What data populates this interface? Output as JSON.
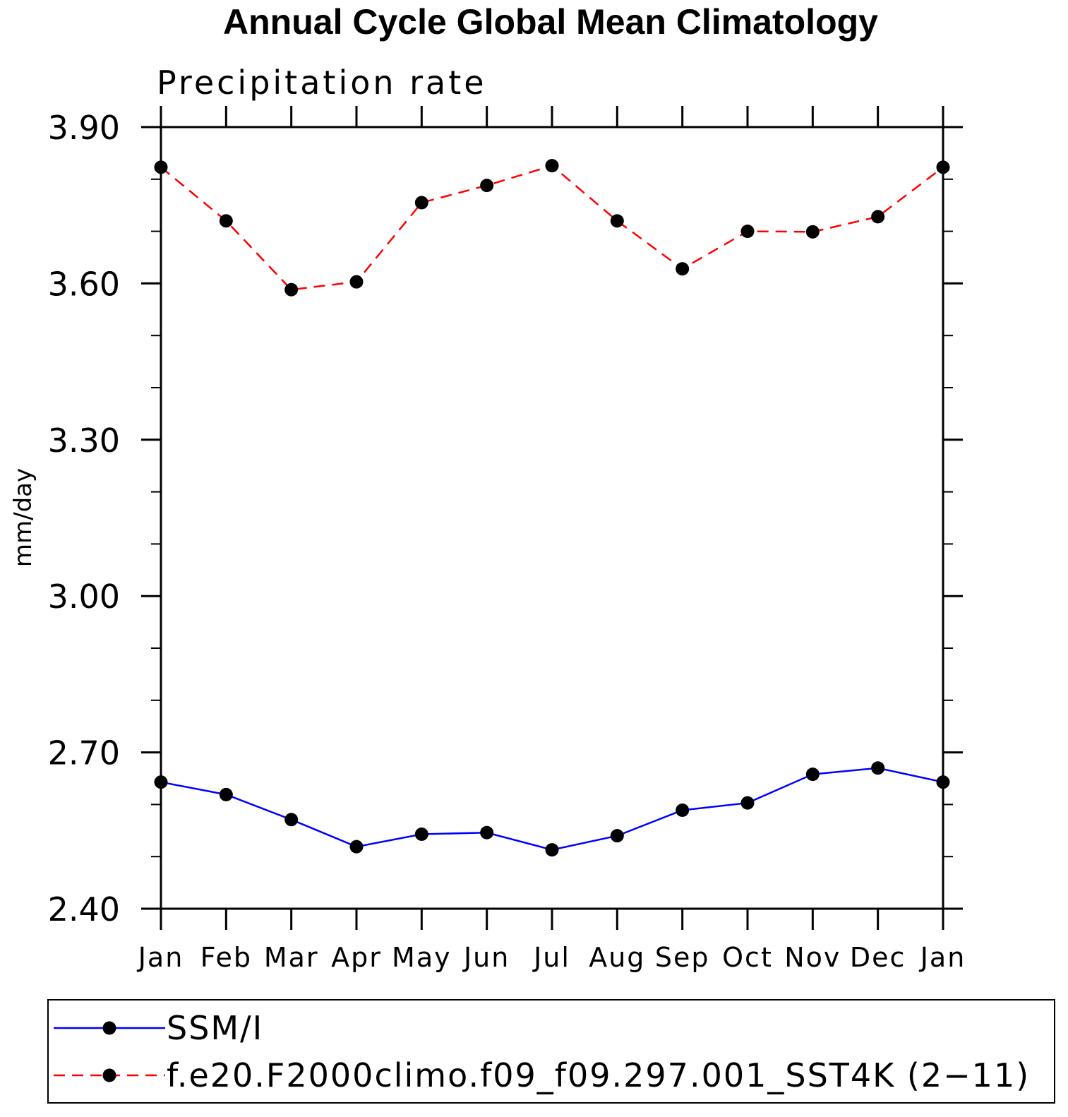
{
  "chart_data": {
    "type": "line",
    "title": "Annual Cycle Global Mean Climatology",
    "subtitle": "Precipitation rate",
    "xlabel": "",
    "ylabel": "mm/day",
    "categories": [
      "Jan",
      "Feb",
      "Mar",
      "Apr",
      "May",
      "Jun",
      "Jul",
      "Aug",
      "Sep",
      "Oct",
      "Nov",
      "Dec",
      "Jan"
    ],
    "ylim": [
      2.4,
      3.9
    ],
    "yticks": [
      "2.40",
      "2.70",
      "3.00",
      "3.30",
      "3.60",
      "3.90"
    ],
    "ytick_values": [
      2.4,
      2.7,
      3.0,
      3.3,
      3.6,
      3.9
    ],
    "grid": false,
    "legend_position": "bottom",
    "series": [
      {
        "name": "SSM/I",
        "color": "#0000ff",
        "line_style": "solid",
        "marker": "filled-circle",
        "values": [
          2.643,
          2.619,
          2.571,
          2.519,
          2.543,
          2.546,
          2.513,
          2.54,
          2.589,
          2.603,
          2.658,
          2.67,
          2.643
        ]
      },
      {
        "name": "f.e20.F2000climo.f09_f09.297.001_SST4K (2−11)",
        "color": "#ff0000",
        "line_style": "dashed",
        "marker": "filled-circle",
        "values": [
          3.823,
          3.72,
          3.588,
          3.603,
          3.755,
          3.788,
          3.826,
          3.72,
          3.628,
          3.7,
          3.699,
          3.728,
          3.823
        ]
      }
    ]
  }
}
